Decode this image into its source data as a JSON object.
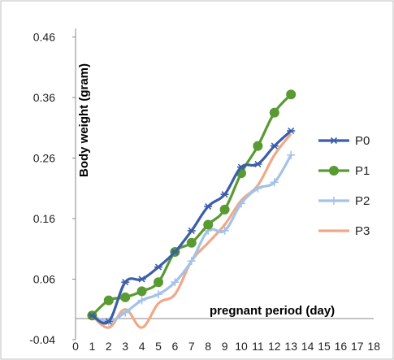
{
  "chart_data": {
    "type": "line",
    "xlabel": "pregnant period (day)",
    "ylabel": "Body weight (gram)",
    "x_ticks": [
      "0",
      "1",
      "2",
      "3",
      "4",
      "5",
      "6",
      "7",
      "8",
      "9",
      "10",
      "11",
      "12",
      "13",
      "14",
      "15",
      "16",
      "17",
      "18"
    ],
    "y_ticks": [
      "-0.04",
      "0.06",
      "0.16",
      "0.26",
      "0.36",
      "0.46"
    ],
    "xlim": [
      0,
      18
    ],
    "ylim": [
      -0.04,
      0.5
    ],
    "grid": false,
    "legend_position": "right",
    "x": [
      1,
      2,
      3,
      4,
      5,
      6,
      7,
      8,
      9,
      10,
      11,
      12,
      13
    ],
    "series": [
      {
        "name": "P0",
        "color": "#3b5ea8",
        "marker": "star",
        "values": [
          0.0,
          -0.01,
          0.055,
          0.06,
          0.08,
          0.105,
          0.14,
          0.18,
          0.2,
          0.245,
          0.25,
          0.28,
          0.305
        ]
      },
      {
        "name": "P1",
        "color": "#5a9a32",
        "marker": "circle",
        "values": [
          0.0,
          0.025,
          0.03,
          0.04,
          0.055,
          0.105,
          0.12,
          0.15,
          0.175,
          0.235,
          0.28,
          0.335,
          0.365
        ]
      },
      {
        "name": "P2",
        "color": "#a4c2e8",
        "marker": "plus",
        "values": [
          0.0,
          -0.01,
          0.005,
          0.025,
          0.035,
          0.055,
          0.09,
          0.14,
          0.14,
          0.185,
          0.21,
          0.22,
          0.265
        ]
      },
      {
        "name": "P3",
        "color": "#f0a889",
        "marker": "none",
        "values": [
          0.0,
          -0.02,
          0.01,
          -0.02,
          0.02,
          0.035,
          0.09,
          0.12,
          0.15,
          0.19,
          0.215,
          0.265,
          0.3
        ]
      }
    ]
  }
}
